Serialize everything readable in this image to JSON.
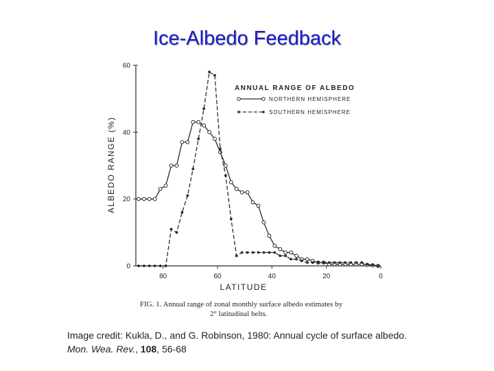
{
  "slide": {
    "title": "Ice-Albedo Feedback"
  },
  "credit": {
    "line1": "Image credit: Kukla, D., and G. Robinson, 1980: Annual cycle of surface albedo.",
    "journal": "Mon. Wea. Rev.",
    "sep1": ", ",
    "volume": "108",
    "pages": ", 56-68"
  },
  "chart_data": {
    "type": "line",
    "legend_title": "ANNUAL RANGE OF ALBEDO",
    "legend_position": "top-right",
    "xlabel": "LATITUDE",
    "ylabel": "ALBEDO RANGE (%)",
    "xlim": [
      90,
      0
    ],
    "ylim": [
      0,
      60
    ],
    "xticks": [
      80,
      60,
      40,
      20,
      0
    ],
    "yticks": [
      0,
      20,
      40,
      60
    ],
    "grid": false,
    "caption_line1": "FIG. 1. Annual range of zonal monthly surface albedo estimates by",
    "caption_line2": "2° latitudinal belts.",
    "series": [
      {
        "name": "NORTHERN HEMISPHERE",
        "style": "solid-open-circle",
        "x": [
          89,
          87,
          85,
          83,
          81,
          79,
          77,
          75,
          73,
          71,
          69,
          67,
          65,
          63,
          61,
          59,
          57,
          55,
          53,
          51,
          49,
          47,
          45,
          43,
          41,
          39,
          37,
          35,
          33,
          31,
          29,
          27,
          25,
          23,
          21,
          19,
          17,
          15,
          13,
          11,
          9,
          7,
          5,
          3,
          1
        ],
        "values": [
          20,
          20,
          20,
          20,
          23,
          24,
          30,
          30,
          37,
          37,
          43,
          43,
          42,
          40,
          38,
          34,
          30,
          25,
          23,
          22,
          22,
          19,
          18,
          13,
          9,
          6,
          5,
          4,
          4,
          3,
          2,
          2,
          1.5,
          1,
          1,
          0.5,
          0.5,
          0.5,
          0.5,
          0.5,
          0.5,
          0.5,
          0.3,
          0.2,
          0
        ]
      },
      {
        "name": "SOUTHERN HEMISPHERE",
        "style": "dashed-filled-dot",
        "x": [
          89,
          87,
          85,
          83,
          81,
          79,
          77,
          75,
          73,
          71,
          69,
          67,
          65,
          63,
          61,
          59,
          57,
          55,
          53,
          51,
          49,
          47,
          45,
          43,
          41,
          39,
          37,
          35,
          33,
          31,
          29,
          27,
          25,
          23,
          21,
          19,
          17,
          15,
          13,
          11,
          9,
          7,
          5,
          3,
          1
        ],
        "values": [
          0,
          0,
          0,
          0,
          0,
          0,
          11,
          10,
          16,
          21,
          29,
          38,
          47,
          58,
          57,
          35,
          27,
          14,
          3,
          4,
          4,
          4,
          4,
          4,
          4,
          4,
          3,
          3,
          2,
          2,
          1.5,
          1,
          1,
          1,
          1,
          1,
          1,
          1,
          1,
          1,
          1,
          1,
          0.5,
          0.3,
          0
        ]
      }
    ]
  }
}
